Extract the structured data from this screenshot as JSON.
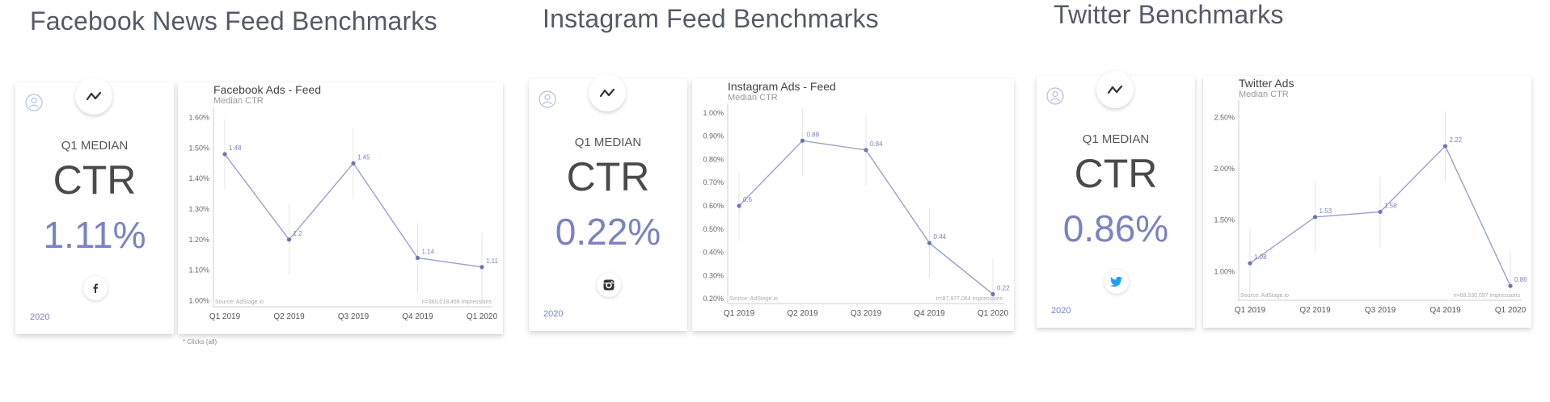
{
  "sections": [
    {
      "heading": "Facebook News Feed Benchmarks",
      "kpi": {
        "label": "Q1 MEDIAN",
        "metric": "CTR",
        "value": "1.11%",
        "year": "2020",
        "social_icon": "facebook-icon"
      },
      "footnote": "* Clicks (all)",
      "chart_data": {
        "type": "line",
        "title": "Facebook Ads - Feed",
        "subtitle": "Median CTR",
        "categories": [
          "Q1 2019",
          "Q2 2019",
          "Q3 2019",
          "Q4 2019",
          "Q1 2020"
        ],
        "series": [
          {
            "values": [
              1.48,
              1.2,
              1.45,
              1.14,
              1.11
            ]
          }
        ],
        "point_labels": [
          "1.48",
          "1.2",
          "1.45",
          "1.14",
          "1.11"
        ],
        "ylim": [
          0.98,
          1.62
        ],
        "yticks": [
          1.0,
          1.1,
          1.2,
          1.3,
          1.4,
          1.5,
          1.6
        ],
        "ytick_labels": [
          "1.00%",
          "1.10%",
          "1.20%",
          "1.30%",
          "1.40%",
          "1.50%",
          "1.60%"
        ],
        "source": "Source: AdStage.io",
        "sample": "n=360,018,459 impressions"
      }
    },
    {
      "heading": "Instagram Feed Benchmarks",
      "kpi": {
        "label": "Q1 MEDIAN",
        "metric": "CTR",
        "value": "0.22%",
        "year": "2020",
        "social_icon": "instagram-icon"
      },
      "chart_data": {
        "type": "line",
        "title": "Instagram Ads - Feed",
        "subtitle": "Median CTR",
        "categories": [
          "Q1 2019",
          "Q2 2019",
          "Q3 2019",
          "Q4 2019",
          "Q1 2020"
        ],
        "series": [
          {
            "values": [
              0.6,
              0.88,
              0.84,
              0.44,
              0.22
            ]
          }
        ],
        "point_labels": [
          "0.6",
          "0.88",
          "0.84",
          "0.44",
          "0.22"
        ],
        "ylim": [
          0.18,
          1.02
        ],
        "yticks": [
          0.2,
          0.3,
          0.4,
          0.5,
          0.6,
          0.7,
          0.8,
          0.9,
          1.0
        ],
        "ytick_labels": [
          "0.20%",
          "0.30%",
          "0.40%",
          "0.50%",
          "0.60%",
          "0.70%",
          "0.80%",
          "0.90%",
          "1.00%"
        ],
        "source": "Source: AdStage.io",
        "sample": "n=87,977,064 impressions"
      }
    },
    {
      "heading": "Twitter Benchmarks",
      "kpi": {
        "label": "Q1 MEDIAN",
        "metric": "CTR",
        "value": "0.86%",
        "year": "2020",
        "social_icon": "twitter-icon"
      },
      "chart_data": {
        "type": "line",
        "title": "Twitter Ads",
        "subtitle": "Median CTR",
        "categories": [
          "Q1 2019",
          "Q2 2019",
          "Q3 2019",
          "Q4 2019",
          "Q1 2020"
        ],
        "series": [
          {
            "values": [
              1.08,
              1.53,
              1.58,
              2.22,
              0.86
            ]
          }
        ],
        "point_labels": [
          "1.08",
          "1.53",
          "1.58",
          "2.22",
          "0.86"
        ],
        "ylim": [
          0.72,
          2.62
        ],
        "yticks": [
          1.0,
          1.5,
          2.0,
          2.5
        ],
        "ytick_labels": [
          "1.00%",
          "1.50%",
          "2.00%",
          "2.50%"
        ],
        "source": "Source: AdStage.io",
        "sample": "n=68,530,097 impressions"
      }
    }
  ],
  "colors": {
    "accent": "#7a82c2",
    "line": "#9aa0cc",
    "point": "#6c74b8",
    "axis": "#cfcfcf",
    "text": "#555a66",
    "facebook": "#3b5998",
    "instagram": "#3a3a3a",
    "twitter": "#1da1f2"
  }
}
